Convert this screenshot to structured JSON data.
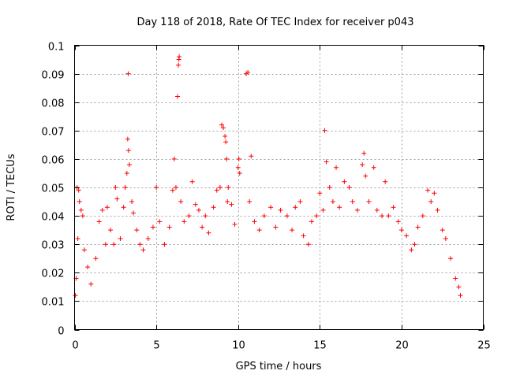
{
  "chart_data": {
    "type": "scatter",
    "title": "Day 118 of 2018, Rate Of TEC Index for receiver p043",
    "xlabel": "GPS time / hours",
    "ylabel": "ROTI / TECUs",
    "xlim": [
      0,
      25
    ],
    "ylim": [
      0,
      0.1
    ],
    "xticks": [
      0,
      5,
      10,
      15,
      20,
      25
    ],
    "xtick_labels": [
      "0",
      "5",
      "10",
      "15",
      "20",
      "25"
    ],
    "yticks": [
      0,
      0.01,
      0.02,
      0.03,
      0.04,
      0.05,
      0.06,
      0.07,
      0.08,
      0.09,
      0.1
    ],
    "ytick_labels": [
      "0",
      "0.01",
      "0.02",
      "0.03",
      "0.04",
      "0.05",
      "0.06",
      "0.07",
      "0.08",
      "0.09",
      "0.1"
    ],
    "grid": true,
    "marker": "+",
    "color": "#ff0000",
    "series": [
      {
        "name": "ROTI",
        "points": [
          [
            0.05,
            0.012
          ],
          [
            0.1,
            0.018
          ],
          [
            0.15,
            0.05
          ],
          [
            0.2,
            0.032
          ],
          [
            0.25,
            0.049
          ],
          [
            0.3,
            0.045
          ],
          [
            0.4,
            0.042
          ],
          [
            0.5,
            0.04
          ],
          [
            0.6,
            0.028
          ],
          [
            0.8,
            0.022
          ],
          [
            1.0,
            0.016
          ],
          [
            1.3,
            0.025
          ],
          [
            1.5,
            0.038
          ],
          [
            1.7,
            0.042
          ],
          [
            1.9,
            0.03
          ],
          [
            2.0,
            0.043
          ],
          [
            2.2,
            0.035
          ],
          [
            2.4,
            0.03
          ],
          [
            2.5,
            0.05
          ],
          [
            2.6,
            0.046
          ],
          [
            2.8,
            0.032
          ],
          [
            3.0,
            0.043
          ],
          [
            3.1,
            0.05
          ],
          [
            3.2,
            0.055
          ],
          [
            3.25,
            0.067
          ],
          [
            3.28,
            0.09
          ],
          [
            3.3,
            0.063
          ],
          [
            3.35,
            0.058
          ],
          [
            3.5,
            0.045
          ],
          [
            3.6,
            0.041
          ],
          [
            3.8,
            0.035
          ],
          [
            4.0,
            0.03
          ],
          [
            4.2,
            0.028
          ],
          [
            4.5,
            0.032
          ],
          [
            4.8,
            0.036
          ],
          [
            5.0,
            0.05
          ],
          [
            5.2,
            0.038
          ],
          [
            5.5,
            0.03
          ],
          [
            5.8,
            0.036
          ],
          [
            6.0,
            0.049
          ],
          [
            6.1,
            0.06
          ],
          [
            6.2,
            0.05
          ],
          [
            6.3,
            0.082
          ],
          [
            6.35,
            0.093
          ],
          [
            6.38,
            0.095
          ],
          [
            6.4,
            0.096
          ],
          [
            6.5,
            0.045
          ],
          [
            6.7,
            0.038
          ],
          [
            7.0,
            0.04
          ],
          [
            7.2,
            0.052
          ],
          [
            7.4,
            0.044
          ],
          [
            7.6,
            0.042
          ],
          [
            7.8,
            0.036
          ],
          [
            8.0,
            0.04
          ],
          [
            8.2,
            0.034
          ],
          [
            8.5,
            0.043
          ],
          [
            8.7,
            0.049
          ],
          [
            8.9,
            0.05
          ],
          [
            9.0,
            0.072
          ],
          [
            9.1,
            0.071
          ],
          [
            9.2,
            0.068
          ],
          [
            9.25,
            0.066
          ],
          [
            9.3,
            0.06
          ],
          [
            9.35,
            0.045
          ],
          [
            9.4,
            0.05
          ],
          [
            9.6,
            0.044
          ],
          [
            9.8,
            0.037
          ],
          [
            10.0,
            0.057
          ],
          [
            10.05,
            0.06
          ],
          [
            10.1,
            0.055
          ],
          [
            10.5,
            0.09
          ],
          [
            10.6,
            0.0905
          ],
          [
            10.7,
            0.045
          ],
          [
            10.8,
            0.061
          ],
          [
            11.0,
            0.038
          ],
          [
            11.3,
            0.035
          ],
          [
            11.6,
            0.04
          ],
          [
            12.0,
            0.043
          ],
          [
            12.3,
            0.036
          ],
          [
            12.6,
            0.042
          ],
          [
            13.0,
            0.04
          ],
          [
            13.3,
            0.035
          ],
          [
            13.5,
            0.043
          ],
          [
            13.8,
            0.045
          ],
          [
            14.0,
            0.033
          ],
          [
            14.3,
            0.03
          ],
          [
            14.5,
            0.038
          ],
          [
            14.8,
            0.04
          ],
          [
            15.0,
            0.048
          ],
          [
            15.2,
            0.042
          ],
          [
            15.3,
            0.07
          ],
          [
            15.4,
            0.059
          ],
          [
            15.6,
            0.05
          ],
          [
            15.8,
            0.045
          ],
          [
            16.0,
            0.057
          ],
          [
            16.2,
            0.043
          ],
          [
            16.5,
            0.052
          ],
          [
            16.8,
            0.05
          ],
          [
            17.0,
            0.045
          ],
          [
            17.3,
            0.042
          ],
          [
            17.6,
            0.058
          ],
          [
            17.7,
            0.062
          ],
          [
            17.8,
            0.054
          ],
          [
            18.0,
            0.045
          ],
          [
            18.3,
            0.057
          ],
          [
            18.5,
            0.042
          ],
          [
            18.8,
            0.04
          ],
          [
            19.0,
            0.052
          ],
          [
            19.2,
            0.04
          ],
          [
            19.5,
            0.043
          ],
          [
            19.8,
            0.038
          ],
          [
            20.0,
            0.035
          ],
          [
            20.3,
            0.033
          ],
          [
            20.6,
            0.028
          ],
          [
            20.8,
            0.03
          ],
          [
            21.0,
            0.036
          ],
          [
            21.3,
            0.04
          ],
          [
            21.6,
            0.049
          ],
          [
            21.8,
            0.045
          ],
          [
            22.0,
            0.048
          ],
          [
            22.2,
            0.042
          ],
          [
            22.5,
            0.035
          ],
          [
            22.7,
            0.032
          ],
          [
            23.0,
            0.025
          ],
          [
            23.3,
            0.018
          ],
          [
            23.5,
            0.015
          ],
          [
            23.6,
            0.012
          ]
        ]
      }
    ]
  }
}
